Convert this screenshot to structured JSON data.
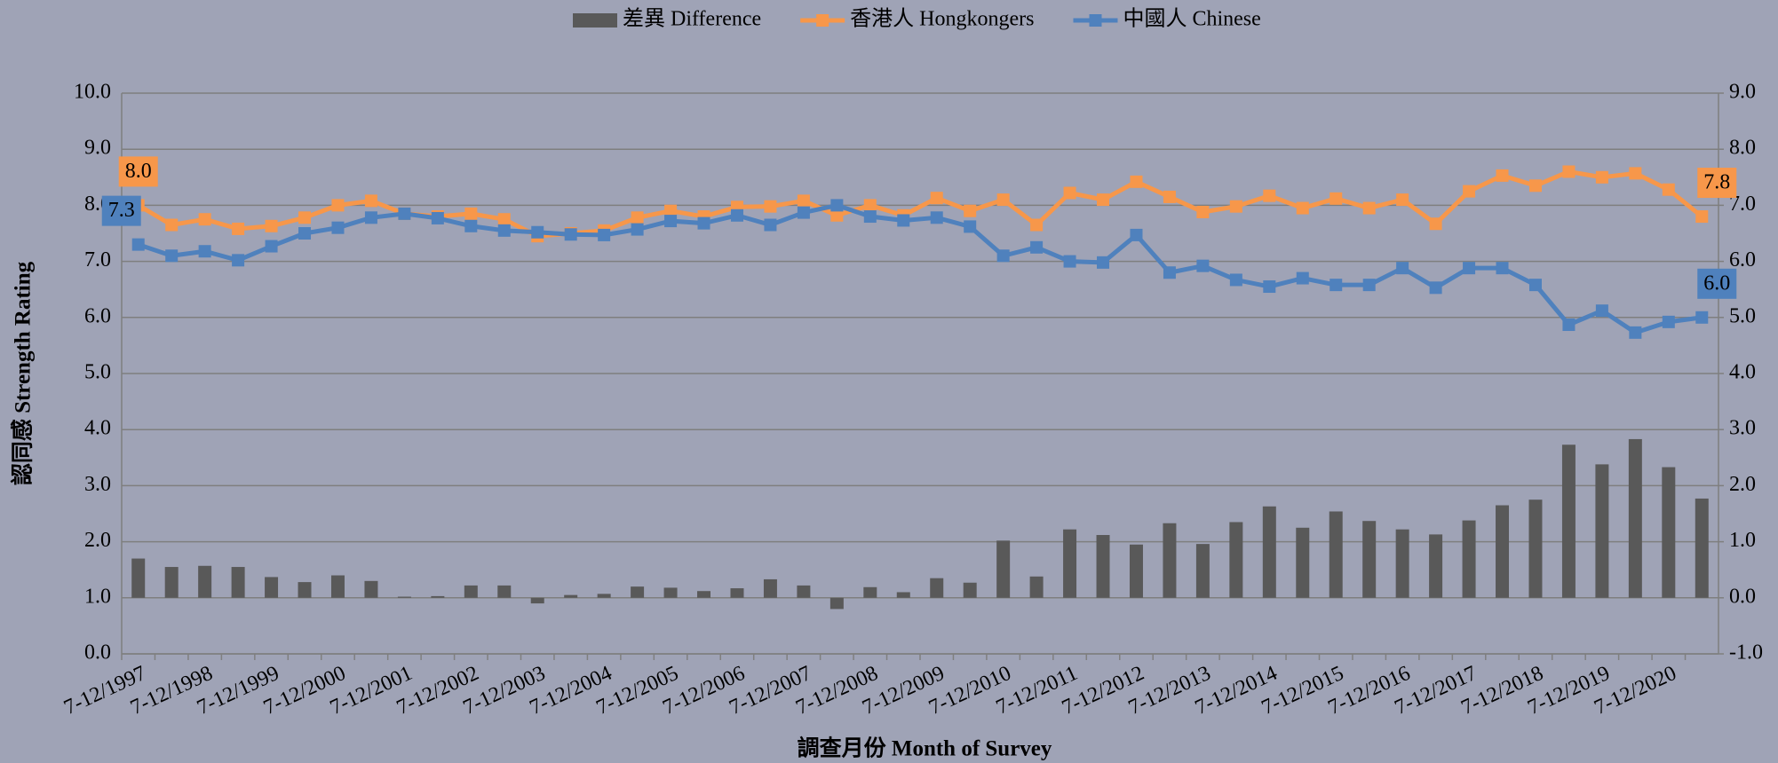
{
  "chart_data": {
    "type": "combo",
    "x_label": "調查月份 Month of Survey",
    "y_label": "認同感 Strength Rating",
    "categories": [
      "7-12/1997",
      null,
      "7-12/1998",
      null,
      "7-12/1999",
      null,
      "7-12/2000",
      null,
      "7-12/2001",
      null,
      "7-12/2002",
      null,
      "7-12/2003",
      null,
      "7-12/2004",
      null,
      "7-12/2005",
      null,
      "7-12/2006",
      null,
      "7-12/2007",
      null,
      "7-12/2008",
      null,
      "7-12/2009",
      null,
      "7-12/2010",
      null,
      "7-12/2011",
      null,
      "7-12/2012",
      null,
      "7-12/2013",
      null,
      "7-12/2014",
      null,
      "7-12/2015",
      null,
      "7-12/2016",
      null,
      "7-12/2017",
      null,
      "7-12/2018",
      null,
      "7-12/2019",
      null,
      "7-12/2020",
      null
    ],
    "ylim": [
      0,
      10
    ],
    "yticks": [
      {
        "value": 0,
        "label": "0.0"
      },
      {
        "value": 1,
        "label": "1.0"
      },
      {
        "value": 2,
        "label": "2.0"
      },
      {
        "value": 3,
        "label": "3.0"
      },
      {
        "value": 4,
        "label": "4.0"
      },
      {
        "value": 5,
        "label": "5.0"
      },
      {
        "value": 6,
        "label": "6.0"
      },
      {
        "value": 7,
        "label": "7.0"
      },
      {
        "value": 8,
        "label": "8.0"
      },
      {
        "value": 9,
        "label": "9.0"
      },
      {
        "value": 10,
        "label": "10.0"
      }
    ],
    "y2lim": [
      -1,
      9
    ],
    "y2ticks": [
      {
        "value": -1,
        "label": "-1.0"
      },
      {
        "value": 0,
        "label": "0.0"
      },
      {
        "value": 1,
        "label": "1.0"
      },
      {
        "value": 2,
        "label": "2.0"
      },
      {
        "value": 3,
        "label": "3.0"
      },
      {
        "value": 4,
        "label": "4.0"
      },
      {
        "value": 5,
        "label": "5.0"
      },
      {
        "value": 6,
        "label": "6.0"
      },
      {
        "value": 7,
        "label": "7.0"
      },
      {
        "value": 8,
        "label": "8.0"
      },
      {
        "value": 9,
        "label": "9.0"
      }
    ],
    "grid": true,
    "legend": "top",
    "series": [
      {
        "name": "差異 Difference",
        "type": "bar",
        "axis": "y2",
        "color": "#595959",
        "values": [
          0.7,
          0.55,
          0.57,
          0.55,
          0.37,
          0.28,
          0.4,
          0.3,
          0.02,
          0.03,
          0.22,
          0.22,
          -0.1,
          0.05,
          0.07,
          0.2,
          0.18,
          0.12,
          0.17,
          0.33,
          0.22,
          -0.2,
          0.19,
          0.1,
          0.35,
          0.27,
          1.02,
          0.38,
          1.22,
          1.12,
          0.95,
          1.33,
          0.96,
          1.35,
          1.63,
          1.25,
          1.54,
          1.37,
          1.22,
          1.13,
          1.38,
          1.65,
          1.75,
          2.73,
          2.38,
          2.83,
          2.33,
          1.77
        ]
      },
      {
        "name": "香港人 Hongkongers",
        "type": "line",
        "color": "#f7974a",
        "values": [
          8,
          7.65,
          7.75,
          7.58,
          7.63,
          7.78,
          8.0,
          8.08,
          7.85,
          7.8,
          7.85,
          7.75,
          7.45,
          7.5,
          7.55,
          7.78,
          7.9,
          7.8,
          7.97,
          7.98,
          8.08,
          7.82,
          8.0,
          7.82,
          8.13,
          7.9,
          8.1,
          7.65,
          8.22,
          8.1,
          8.42,
          8.15,
          7.88,
          7.98,
          8.17,
          7.95,
          8.12,
          7.95,
          8.1,
          7.67,
          8.25,
          8.53,
          8.35,
          8.6,
          8.5,
          8.57,
          8.28,
          7.8
        ],
        "value_labels": [
          "8.0",
          null,
          null,
          null,
          null,
          null,
          null,
          null,
          null,
          null,
          null,
          null,
          null,
          null,
          null,
          null,
          null,
          null,
          null,
          null,
          null,
          null,
          null,
          null,
          null,
          null,
          null,
          null,
          null,
          null,
          null,
          null,
          null,
          null,
          null,
          null,
          null,
          null,
          null,
          null,
          null,
          null,
          null,
          null,
          null,
          null,
          null,
          "7.8"
        ]
      },
      {
        "name": "中國人 Chinese",
        "type": "line",
        "color": "#4f81bd",
        "values": [
          7.3,
          7.1,
          7.18,
          7.02,
          7.27,
          7.5,
          7.6,
          7.78,
          7.85,
          7.77,
          7.63,
          7.55,
          7.52,
          7.48,
          7.47,
          7.57,
          7.72,
          7.68,
          7.82,
          7.65,
          7.87,
          8.0,
          7.8,
          7.73,
          7.78,
          7.62,
          7.1,
          7.25,
          7.0,
          6.98,
          7.47,
          6.8,
          6.92,
          6.67,
          6.55,
          6.7,
          6.58,
          6.58,
          6.88,
          6.53,
          6.88,
          6.88,
          6.58,
          5.87,
          6.12,
          5.73,
          5.92,
          6.0
        ],
        "value_labels": [
          "7.3",
          null,
          null,
          null,
          null,
          null,
          null,
          null,
          null,
          null,
          null,
          null,
          null,
          null,
          null,
          null,
          null,
          null,
          null,
          null,
          null,
          null,
          null,
          null,
          null,
          null,
          null,
          null,
          null,
          null,
          null,
          null,
          null,
          null,
          null,
          null,
          null,
          null,
          null,
          null,
          null,
          null,
          null,
          null,
          null,
          null,
          null,
          "6.0"
        ]
      }
    ]
  }
}
